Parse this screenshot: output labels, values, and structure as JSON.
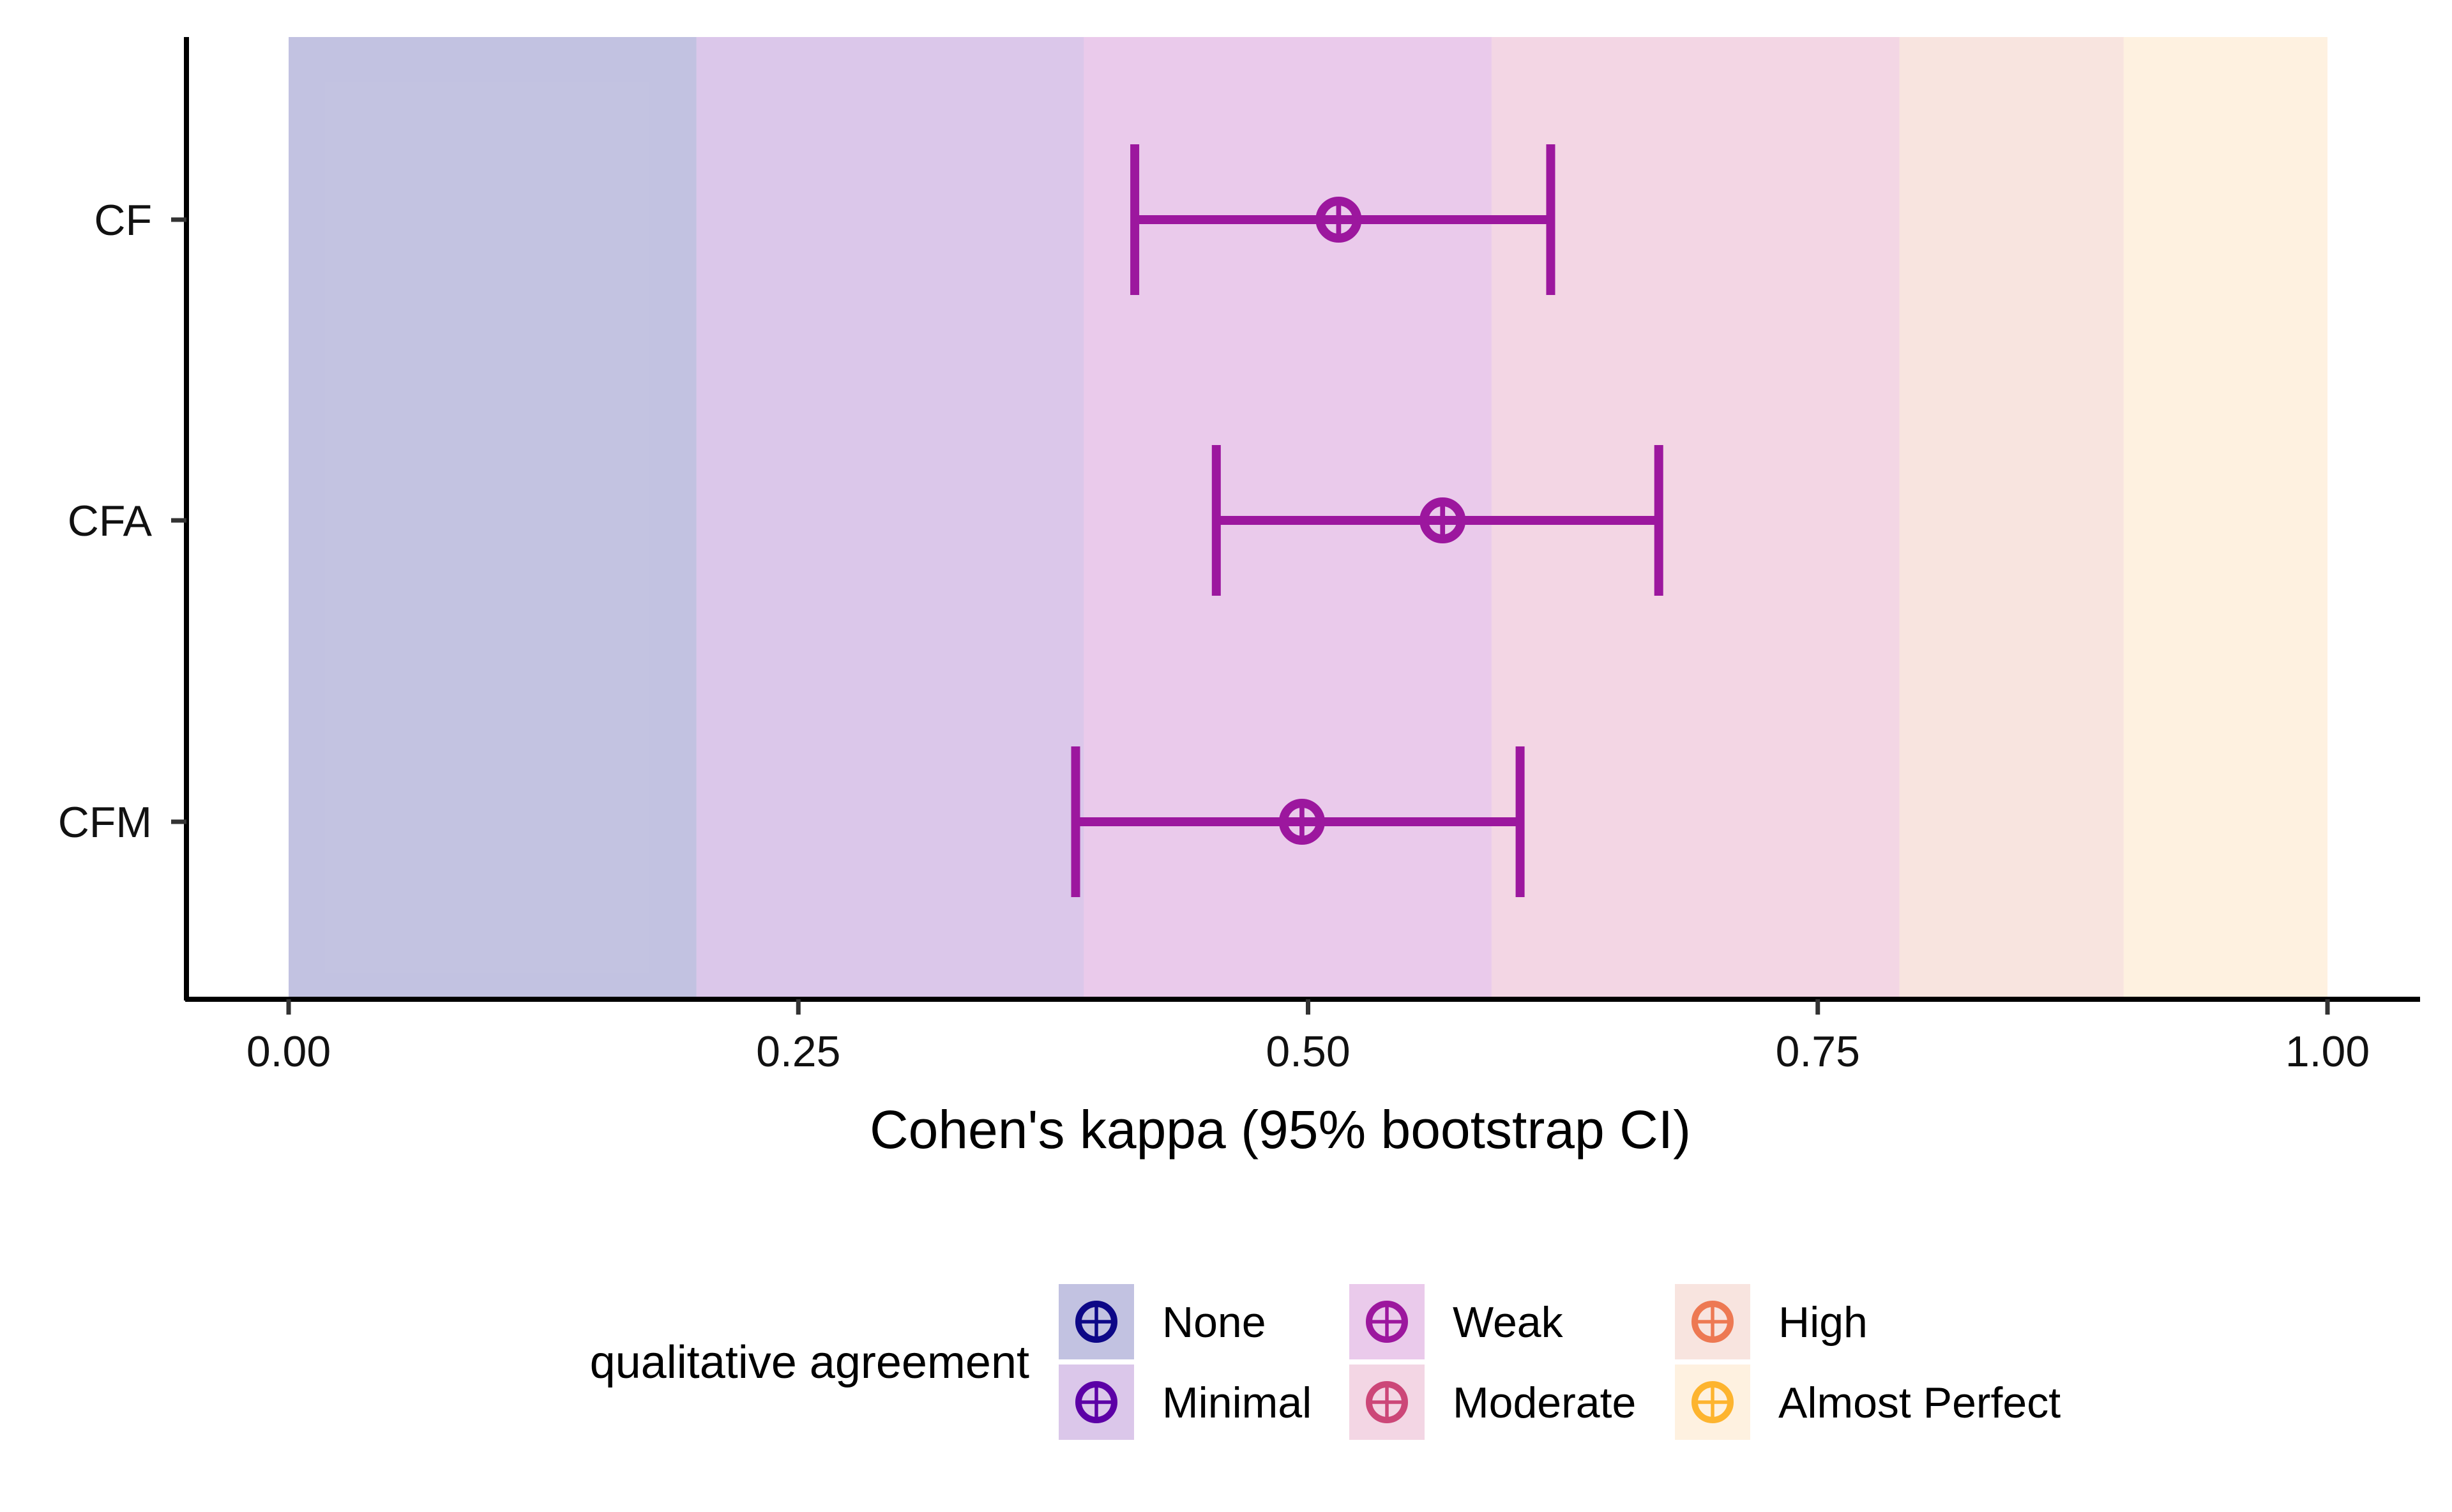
{
  "chart_data": {
    "type": "scatter",
    "subtype": "point-range with 95% confidence interval error bars",
    "title": "",
    "xlabel": "Cohen's kappa (95% bootstrap CI)",
    "ylabel": "",
    "xlim": [
      -0.05,
      1.05
    ],
    "x_ticks": [
      {
        "value": 0.0,
        "label": "0.00"
      },
      {
        "value": 0.25,
        "label": "0.25"
      },
      {
        "value": 0.5,
        "label": "0.50"
      },
      {
        "value": 0.75,
        "label": "0.75"
      },
      {
        "value": 1.0,
        "label": "1.00"
      }
    ],
    "categories": [
      "CF",
      "CFA",
      "CFM"
    ],
    "points": [
      {
        "category": "CF",
        "estimate": 0.515,
        "ci_low": 0.415,
        "ci_high": 0.619,
        "agreement": "Weak"
      },
      {
        "category": "CFA",
        "estimate": 0.566,
        "ci_low": 0.455,
        "ci_high": 0.672,
        "agreement": "Weak"
      },
      {
        "category": "CFM",
        "estimate": 0.497,
        "ci_low": 0.386,
        "ci_high": 0.604,
        "agreement": "Weak"
      }
    ],
    "bands": [
      {
        "name": "None",
        "from": 0.0,
        "to": 0.2,
        "color": "#1f1f8f",
        "marker_color": "#0d0887"
      },
      {
        "name": "Minimal",
        "from": 0.2,
        "to": 0.39,
        "color": "#7a2fb0",
        "marker_color": "#5c01a6"
      },
      {
        "name": "Weak",
        "from": 0.39,
        "to": 0.59,
        "color": "#b03ab5",
        "marker_color": "#9c179e"
      },
      {
        "name": "Moderate",
        "from": 0.59,
        "to": 0.79,
        "color": "#d2679a",
        "marker_color": "#cc4778"
      },
      {
        "name": "High",
        "from": 0.79,
        "to": 0.9,
        "color": "#e59a8a",
        "marker_color": "#ed7953"
      },
      {
        "name": "Almost Perfect",
        "from": 0.9,
        "to": 1.0,
        "color": "#fdca8c",
        "marker_color": "#fdb42f"
      }
    ],
    "point_color": "#9c179e",
    "legend": {
      "title": "qualitative agreement",
      "position": "bottom"
    },
    "grid": false
  }
}
